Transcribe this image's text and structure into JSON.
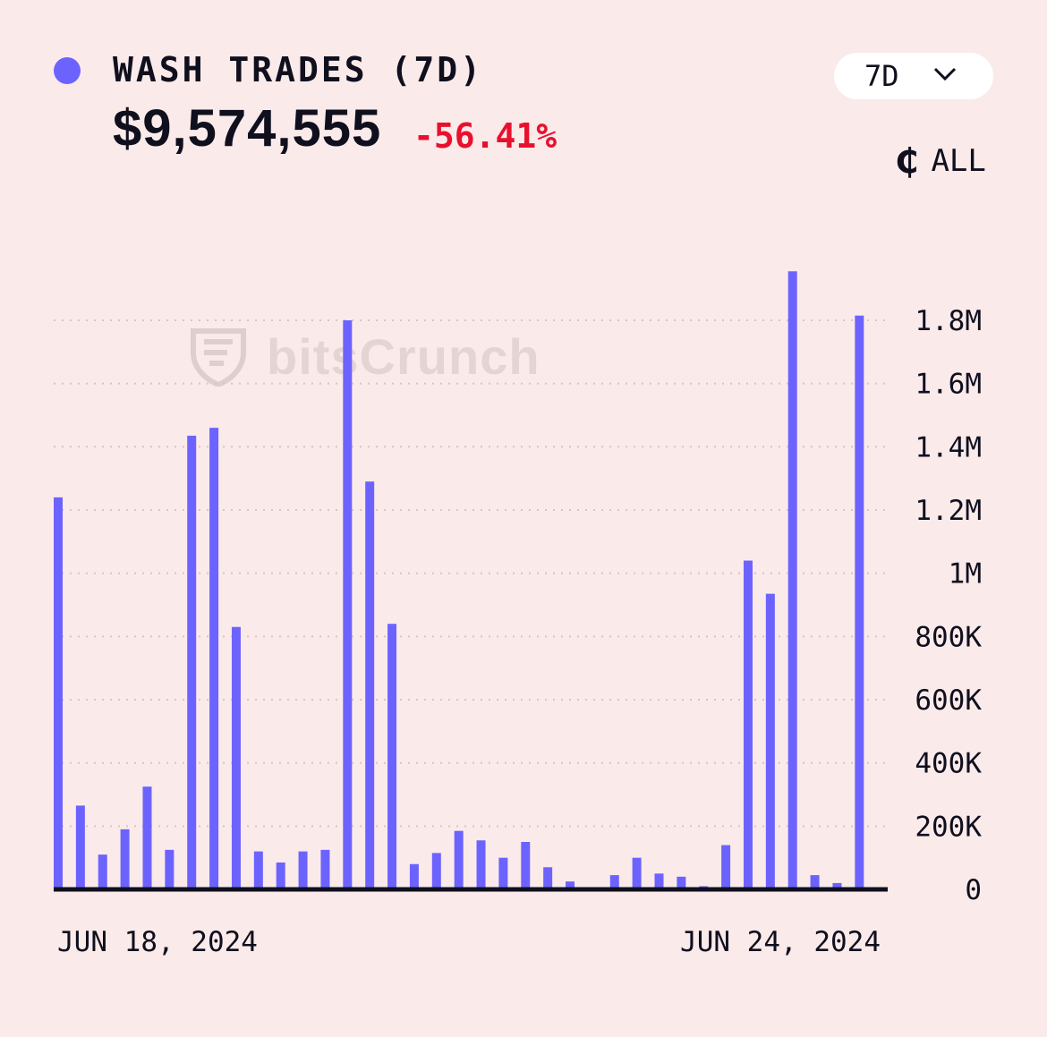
{
  "header": {
    "title": "WASH TRADES (7D)",
    "value": "$9,574,555",
    "change": "-56.41%",
    "period_label": "7D",
    "chain_label": "ALL",
    "watermark": "bitsCrunch"
  },
  "icons": {
    "legend": "legend-dot-icon",
    "dropdown": "chevron-down-icon",
    "chain": "chain-cent-icon",
    "watermark": "bitscrunch-shield-icon"
  },
  "colors": {
    "bar": "#6c63ff",
    "negative": "#e8112d",
    "background": "#fbeaea"
  },
  "chart_data": {
    "type": "bar",
    "x_start_label": "JUN 18, 2024",
    "x_end_label": "JUN 24, 2024",
    "values": [
      1240000,
      265000,
      110000,
      190000,
      325000,
      125000,
      1435000,
      1460000,
      830000,
      120000,
      85000,
      120000,
      125000,
      1800000,
      1290000,
      840000,
      80000,
      115000,
      185000,
      155000,
      100000,
      150000,
      70000,
      25000,
      5000,
      45000,
      100000,
      50000,
      40000,
      10000,
      140000,
      1040000,
      935000,
      1955000,
      45000,
      20000,
      1815000
    ],
    "y_ticks": [
      0,
      200000,
      400000,
      600000,
      800000,
      1000000,
      1200000,
      1400000,
      1600000,
      1800000
    ],
    "y_tick_labels": [
      "0",
      "200K",
      "400K",
      "600K",
      "800K",
      "1M",
      "1.2M",
      "1.4M",
      "1.6M",
      "1.8M"
    ],
    "ylim": [
      0,
      1800000
    ],
    "grid": true,
    "y_axis_side": "right"
  }
}
